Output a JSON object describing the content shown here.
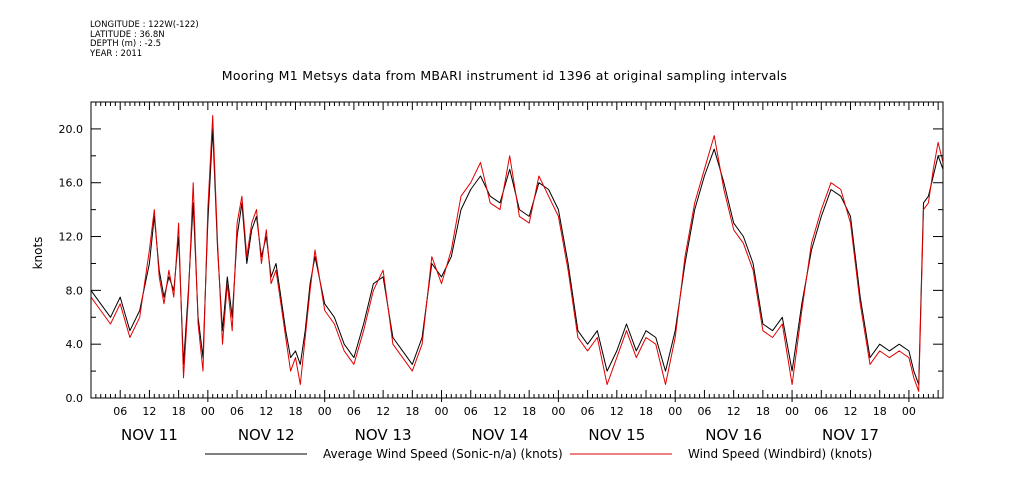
{
  "metadata": {
    "longitude": "LONGITUDE : 122W(-122)",
    "latitude": "LATITUDE : 36.8N",
    "depth": "DEPTH (m) : -2.5",
    "year": "YEAR : 2011"
  },
  "chart_data": {
    "type": "line",
    "title": "Mooring M1 Metsys data from MBARI instrument id 1396 at original sampling intervals",
    "xlabel": "",
    "ylabel": "knots",
    "ylim": [
      0,
      22
    ],
    "xlim_hours": [
      0,
      175
    ],
    "yticks": [
      0,
      4,
      8,
      12,
      16,
      20
    ],
    "ytick_labels": [
      "0.0",
      "4.0",
      "8.0",
      "12.0",
      "16.0",
      "20.0"
    ],
    "hour_ticks": [
      "06",
      "12",
      "18",
      "00",
      "06",
      "12",
      "18",
      "00",
      "06",
      "12",
      "18",
      "00",
      "06",
      "12",
      "18",
      "00",
      "06",
      "12",
      "18",
      "00",
      "06",
      "12",
      "18",
      "00",
      "06",
      "12",
      "18",
      "00"
    ],
    "day_labels": [
      "NOV 11",
      "NOV 12",
      "NOV 13",
      "NOV 14",
      "NOV 15",
      "NOV 16",
      "NOV 17"
    ],
    "grid": false,
    "legend_position": "bottom",
    "series": [
      {
        "name": "Average Wind Speed (Sonic-n/a) (knots)",
        "color": "#000000",
        "x": [
          0,
          2,
          4,
          6,
          8,
          10,
          12,
          13,
          14,
          15,
          16,
          17,
          18,
          19,
          20,
          21,
          22,
          23,
          24,
          25,
          26,
          27,
          28,
          29,
          30,
          31,
          32,
          33,
          34,
          35,
          36,
          37,
          38,
          39,
          40,
          41,
          42,
          43,
          44,
          45,
          46,
          48,
          50,
          52,
          54,
          56,
          58,
          60,
          62,
          64,
          66,
          68,
          70,
          72,
          74,
          76,
          78,
          80,
          82,
          84,
          86,
          88,
          90,
          92,
          94,
          96,
          98,
          100,
          102,
          104,
          106,
          108,
          110,
          112,
          114,
          116,
          118,
          120,
          122,
          124,
          126,
          128,
          130,
          132,
          134,
          136,
          138,
          140,
          142,
          144,
          146,
          148,
          150,
          152,
          154,
          156,
          158,
          160,
          162,
          164,
          166,
          168,
          169,
          170,
          171,
          172,
          173,
          174,
          175
        ],
        "values": [
          8.0,
          7.0,
          6.0,
          7.5,
          5.0,
          6.5,
          10.0,
          13.5,
          9.5,
          7.5,
          9.0,
          8.0,
          12.0,
          2.5,
          8.0,
          14.5,
          6.0,
          3.0,
          13.0,
          20.0,
          11.0,
          5.0,
          9.0,
          6.0,
          12.0,
          14.5,
          10.0,
          12.5,
          13.5,
          10.5,
          12.0,
          9.0,
          10.0,
          7.5,
          5.0,
          3.0,
          3.5,
          2.5,
          5.0,
          8.5,
          10.5,
          7.0,
          6.0,
          4.0,
          3.0,
          5.5,
          8.5,
          9.0,
          4.5,
          3.5,
          2.5,
          4.5,
          10.0,
          9.0,
          10.5,
          14.0,
          15.5,
          16.5,
          15.0,
          14.5,
          17.0,
          14.0,
          13.5,
          16.0,
          15.5,
          14.0,
          10.0,
          5.0,
          4.0,
          5.0,
          2.0,
          3.5,
          5.5,
          3.5,
          5.0,
          4.5,
          2.0,
          5.0,
          10.0,
          14.0,
          16.5,
          18.5,
          16.0,
          13.0,
          12.0,
          10.0,
          5.5,
          5.0,
          6.0,
          2.0,
          7.0,
          11.0,
          13.5,
          15.5,
          15.0,
          13.5,
          7.5,
          3.0,
          4.0,
          3.5,
          4.0,
          3.5,
          2.0,
          1.0,
          14.5,
          15.0,
          16.5,
          18.0,
          17.0
        ]
      },
      {
        "name": "Wind Speed (Windbird) (knots)",
        "color": "#e00000",
        "x": [
          0,
          2,
          4,
          6,
          8,
          10,
          12,
          13,
          14,
          15,
          16,
          17,
          18,
          19,
          20,
          21,
          22,
          23,
          24,
          25,
          26,
          27,
          28,
          29,
          30,
          31,
          32,
          33,
          34,
          35,
          36,
          37,
          38,
          39,
          40,
          41,
          42,
          43,
          44,
          45,
          46,
          48,
          50,
          52,
          54,
          56,
          58,
          60,
          62,
          64,
          66,
          68,
          70,
          72,
          74,
          76,
          78,
          80,
          82,
          84,
          86,
          88,
          90,
          92,
          94,
          96,
          98,
          100,
          102,
          104,
          106,
          108,
          110,
          112,
          114,
          116,
          118,
          120,
          122,
          124,
          126,
          128,
          130,
          132,
          134,
          136,
          138,
          140,
          142,
          144,
          146,
          148,
          150,
          152,
          154,
          156,
          158,
          160,
          162,
          164,
          166,
          168,
          169,
          170,
          171,
          172,
          173,
          174,
          175
        ],
        "values": [
          7.5,
          6.5,
          5.5,
          7.0,
          4.5,
          6.0,
          11.0,
          14.0,
          9.0,
          7.0,
          9.5,
          7.5,
          13.0,
          1.5,
          7.5,
          16.0,
          5.5,
          2.0,
          14.0,
          21.0,
          11.5,
          4.0,
          8.5,
          5.0,
          13.0,
          15.0,
          10.5,
          13.0,
          14.0,
          10.0,
          12.5,
          8.5,
          9.5,
          7.0,
          4.5,
          2.0,
          3.0,
          1.0,
          4.5,
          8.0,
          11.0,
          6.5,
          5.5,
          3.5,
          2.5,
          5.0,
          8.0,
          9.5,
          4.0,
          3.0,
          2.0,
          4.0,
          10.5,
          8.5,
          11.0,
          15.0,
          16.0,
          17.5,
          14.5,
          14.0,
          18.0,
          13.5,
          13.0,
          16.5,
          15.0,
          13.5,
          9.5,
          4.5,
          3.5,
          4.5,
          1.0,
          3.0,
          5.0,
          3.0,
          4.5,
          4.0,
          1.0,
          4.5,
          10.5,
          14.5,
          17.0,
          19.5,
          15.5,
          12.5,
          11.5,
          9.5,
          5.0,
          4.5,
          5.5,
          1.0,
          6.5,
          11.5,
          14.0,
          16.0,
          15.5,
          13.0,
          7.0,
          2.5,
          3.5,
          3.0,
          3.5,
          3.0,
          1.5,
          0.5,
          14.0,
          14.5,
          17.0,
          19.0,
          17.5
        ]
      }
    ]
  }
}
